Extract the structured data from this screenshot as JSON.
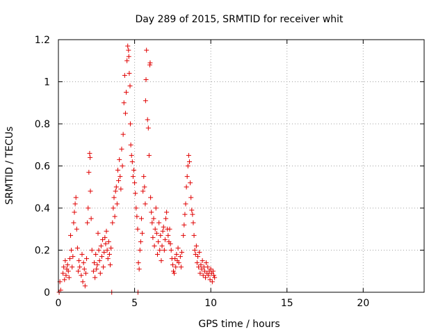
{
  "chart_data": {
    "type": "scatter",
    "title": "Day 289 of 2015, SRMTID for receiver whit",
    "xlabel": "GPS time / hours",
    "ylabel": "SRMTID / TECUs",
    "xlim": [
      0,
      24
    ],
    "ylim": [
      0,
      1.2
    ],
    "xticks": [
      0,
      5,
      10,
      15,
      20
    ],
    "yticks": [
      0,
      0.2,
      0.4,
      0.6,
      0.8,
      1,
      1.2
    ],
    "xtick_labels": [
      "0",
      "5",
      "10",
      "15",
      "20"
    ],
    "ytick_labels": [
      "0",
      "0.2",
      "0.4",
      "0.6",
      "0.8",
      "1",
      "1.2"
    ],
    "grid": true,
    "marker": "+",
    "series": [
      {
        "name": "SRMTID",
        "color": "#e00000",
        "points": [
          [
            0.05,
            0.0
          ],
          [
            0.1,
            0.05
          ],
          [
            0.15,
            0.01
          ],
          [
            0.3,
            0.09
          ],
          [
            0.35,
            0.12
          ],
          [
            0.4,
            0.06
          ],
          [
            0.45,
            0.15
          ],
          [
            0.5,
            0.08
          ],
          [
            0.55,
            0.11
          ],
          [
            0.6,
            0.13
          ],
          [
            0.65,
            0.1
          ],
          [
            0.7,
            0.07
          ],
          [
            0.75,
            0.16
          ],
          [
            0.8,
            0.27
          ],
          [
            0.85,
            0.2
          ],
          [
            0.9,
            0.12
          ],
          [
            0.95,
            0.17
          ],
          [
            1.0,
            0.33
          ],
          [
            1.05,
            0.38
          ],
          [
            1.1,
            0.42
          ],
          [
            1.15,
            0.45
          ],
          [
            1.2,
            0.3
          ],
          [
            1.25,
            0.21
          ],
          [
            1.3,
            0.1
          ],
          [
            1.35,
            0.15
          ],
          [
            1.4,
            0.12
          ],
          [
            1.5,
            0.08
          ],
          [
            1.55,
            0.18
          ],
          [
            1.6,
            0.05
          ],
          [
            1.65,
            0.14
          ],
          [
            1.7,
            0.11
          ],
          [
            1.75,
            0.03
          ],
          [
            1.8,
            0.09
          ],
          [
            1.85,
            0.16
          ],
          [
            1.9,
            0.33
          ],
          [
            1.95,
            0.4
          ],
          [
            2.0,
            0.57
          ],
          [
            2.05,
            0.66
          ],
          [
            2.08,
            0.64
          ],
          [
            2.1,
            0.48
          ],
          [
            2.15,
            0.35
          ],
          [
            2.2,
            0.2
          ],
          [
            2.3,
            0.1
          ],
          [
            2.35,
            0.14
          ],
          [
            2.4,
            0.07
          ],
          [
            2.45,
            0.18
          ],
          [
            2.5,
            0.11
          ],
          [
            2.55,
            0.13
          ],
          [
            2.6,
            0.28
          ],
          [
            2.65,
            0.2
          ],
          [
            2.7,
            0.15
          ],
          [
            2.75,
            0.09
          ],
          [
            2.8,
            0.22
          ],
          [
            2.85,
            0.17
          ],
          [
            2.9,
            0.25
          ],
          [
            2.95,
            0.12
          ],
          [
            3.0,
            0.19
          ],
          [
            3.05,
            0.26
          ],
          [
            3.1,
            0.23
          ],
          [
            3.15,
            0.29
          ],
          [
            3.2,
            0.2
          ],
          [
            3.25,
            0.16
          ],
          [
            3.3,
            0.24
          ],
          [
            3.35,
            0.18
          ],
          [
            3.4,
            0.13
          ],
          [
            3.45,
            0.21
          ],
          [
            3.5,
            0.0
          ],
          [
            3.55,
            0.33
          ],
          [
            3.6,
            0.4
          ],
          [
            3.65,
            0.45
          ],
          [
            3.7,
            0.36
          ],
          [
            3.75,
            0.48
          ],
          [
            3.8,
            0.5
          ],
          [
            3.85,
            0.42
          ],
          [
            3.9,
            0.58
          ],
          [
            3.95,
            0.53
          ],
          [
            4.0,
            0.63
          ],
          [
            4.05,
            0.55
          ],
          [
            4.1,
            0.49
          ],
          [
            4.15,
            0.68
          ],
          [
            4.2,
            0.6
          ],
          [
            4.25,
            0.75
          ],
          [
            4.3,
            0.9
          ],
          [
            4.35,
            1.03
          ],
          [
            4.4,
            0.85
          ],
          [
            4.45,
            0.95
          ],
          [
            4.5,
            1.1
          ],
          [
            4.55,
            1.17
          ],
          [
            4.6,
            1.15
          ],
          [
            4.62,
            1.12
          ],
          [
            4.65,
            1.04
          ],
          [
            4.7,
            0.98
          ],
          [
            4.72,
            0.8
          ],
          [
            4.75,
            0.7
          ],
          [
            4.8,
            0.65
          ],
          [
            4.85,
            0.62
          ],
          [
            4.9,
            0.55
          ],
          [
            4.95,
            0.58
          ],
          [
            5.0,
            0.52
          ],
          [
            5.05,
            0.47
          ],
          [
            5.1,
            0.4
          ],
          [
            5.15,
            0.36
          ],
          [
            5.2,
            0.3
          ],
          [
            5.22,
            0.0
          ],
          [
            5.25,
            0.14
          ],
          [
            5.3,
            0.11
          ],
          [
            5.35,
            0.2
          ],
          [
            5.4,
            0.24
          ],
          [
            5.45,
            0.35
          ],
          [
            5.5,
            0.28
          ],
          [
            5.55,
            0.48
          ],
          [
            5.6,
            0.55
          ],
          [
            5.65,
            0.5
          ],
          [
            5.7,
            0.42
          ],
          [
            5.72,
            0.91
          ],
          [
            5.75,
            1.01
          ],
          [
            5.78,
            1.15
          ],
          [
            5.85,
            0.82
          ],
          [
            5.9,
            0.78
          ],
          [
            5.95,
            0.65
          ],
          [
            6.0,
            1.08
          ],
          [
            6.02,
            1.09
          ],
          [
            6.05,
            0.45
          ],
          [
            6.1,
            0.38
          ],
          [
            6.15,
            0.33
          ],
          [
            6.2,
            0.26
          ],
          [
            6.25,
            0.35
          ],
          [
            6.3,
            0.22
          ],
          [
            6.35,
            0.3
          ],
          [
            6.4,
            0.4
          ],
          [
            6.45,
            0.28
          ],
          [
            6.5,
            0.18
          ],
          [
            6.55,
            0.24
          ],
          [
            6.6,
            0.33
          ],
          [
            6.65,
            0.2
          ],
          [
            6.7,
            0.27
          ],
          [
            6.75,
            0.15
          ],
          [
            6.8,
            0.22
          ],
          [
            6.85,
            0.29
          ],
          [
            6.9,
            0.31
          ],
          [
            6.95,
            0.2
          ],
          [
            7.0,
            0.25
          ],
          [
            7.05,
            0.35
          ],
          [
            7.1,
            0.38
          ],
          [
            7.15,
            0.3
          ],
          [
            7.2,
            0.27
          ],
          [
            7.25,
            0.24
          ],
          [
            7.3,
            0.3
          ],
          [
            7.35,
            0.23
          ],
          [
            7.4,
            0.2
          ],
          [
            7.45,
            0.16
          ],
          [
            7.5,
            0.13
          ],
          [
            7.55,
            0.1
          ],
          [
            7.6,
            0.09
          ],
          [
            7.65,
            0.16
          ],
          [
            7.7,
            0.12
          ],
          [
            7.75,
            0.18
          ],
          [
            7.8,
            0.15
          ],
          [
            7.85,
            0.21
          ],
          [
            7.9,
            0.14
          ],
          [
            8.0,
            0.17
          ],
          [
            8.05,
            0.12
          ],
          [
            8.1,
            0.19
          ],
          [
            8.2,
            0.27
          ],
          [
            8.25,
            0.32
          ],
          [
            8.3,
            0.37
          ],
          [
            8.35,
            0.42
          ],
          [
            8.4,
            0.5
          ],
          [
            8.45,
            0.55
          ],
          [
            8.5,
            0.6
          ],
          [
            8.55,
            0.65
          ],
          [
            8.6,
            0.62
          ],
          [
            8.65,
            0.52
          ],
          [
            8.7,
            0.45
          ],
          [
            8.75,
            0.39
          ],
          [
            8.8,
            0.37
          ],
          [
            8.85,
            0.33
          ],
          [
            8.9,
            0.27
          ],
          [
            8.95,
            0.2
          ],
          [
            9.0,
            0.18
          ],
          [
            9.05,
            0.22
          ],
          [
            9.1,
            0.14
          ],
          [
            9.15,
            0.17
          ],
          [
            9.2,
            0.12
          ],
          [
            9.25,
            0.19
          ],
          [
            9.3,
            0.09
          ],
          [
            9.35,
            0.13
          ],
          [
            9.4,
            0.11
          ],
          [
            9.45,
            0.15
          ],
          [
            9.5,
            0.08
          ],
          [
            9.55,
            0.12
          ],
          [
            9.6,
            0.1
          ],
          [
            9.65,
            0.07
          ],
          [
            9.7,
            0.14
          ],
          [
            9.75,
            0.09
          ],
          [
            9.8,
            0.12
          ],
          [
            9.85,
            0.08
          ],
          [
            9.9,
            0.1
          ],
          [
            9.95,
            0.06
          ],
          [
            10.0,
            0.11
          ],
          [
            10.05,
            0.09
          ],
          [
            10.1,
            0.05
          ],
          [
            10.15,
            0.1
          ],
          [
            10.2,
            0.08
          ],
          [
            10.25,
            0.07
          ]
        ]
      }
    ]
  }
}
